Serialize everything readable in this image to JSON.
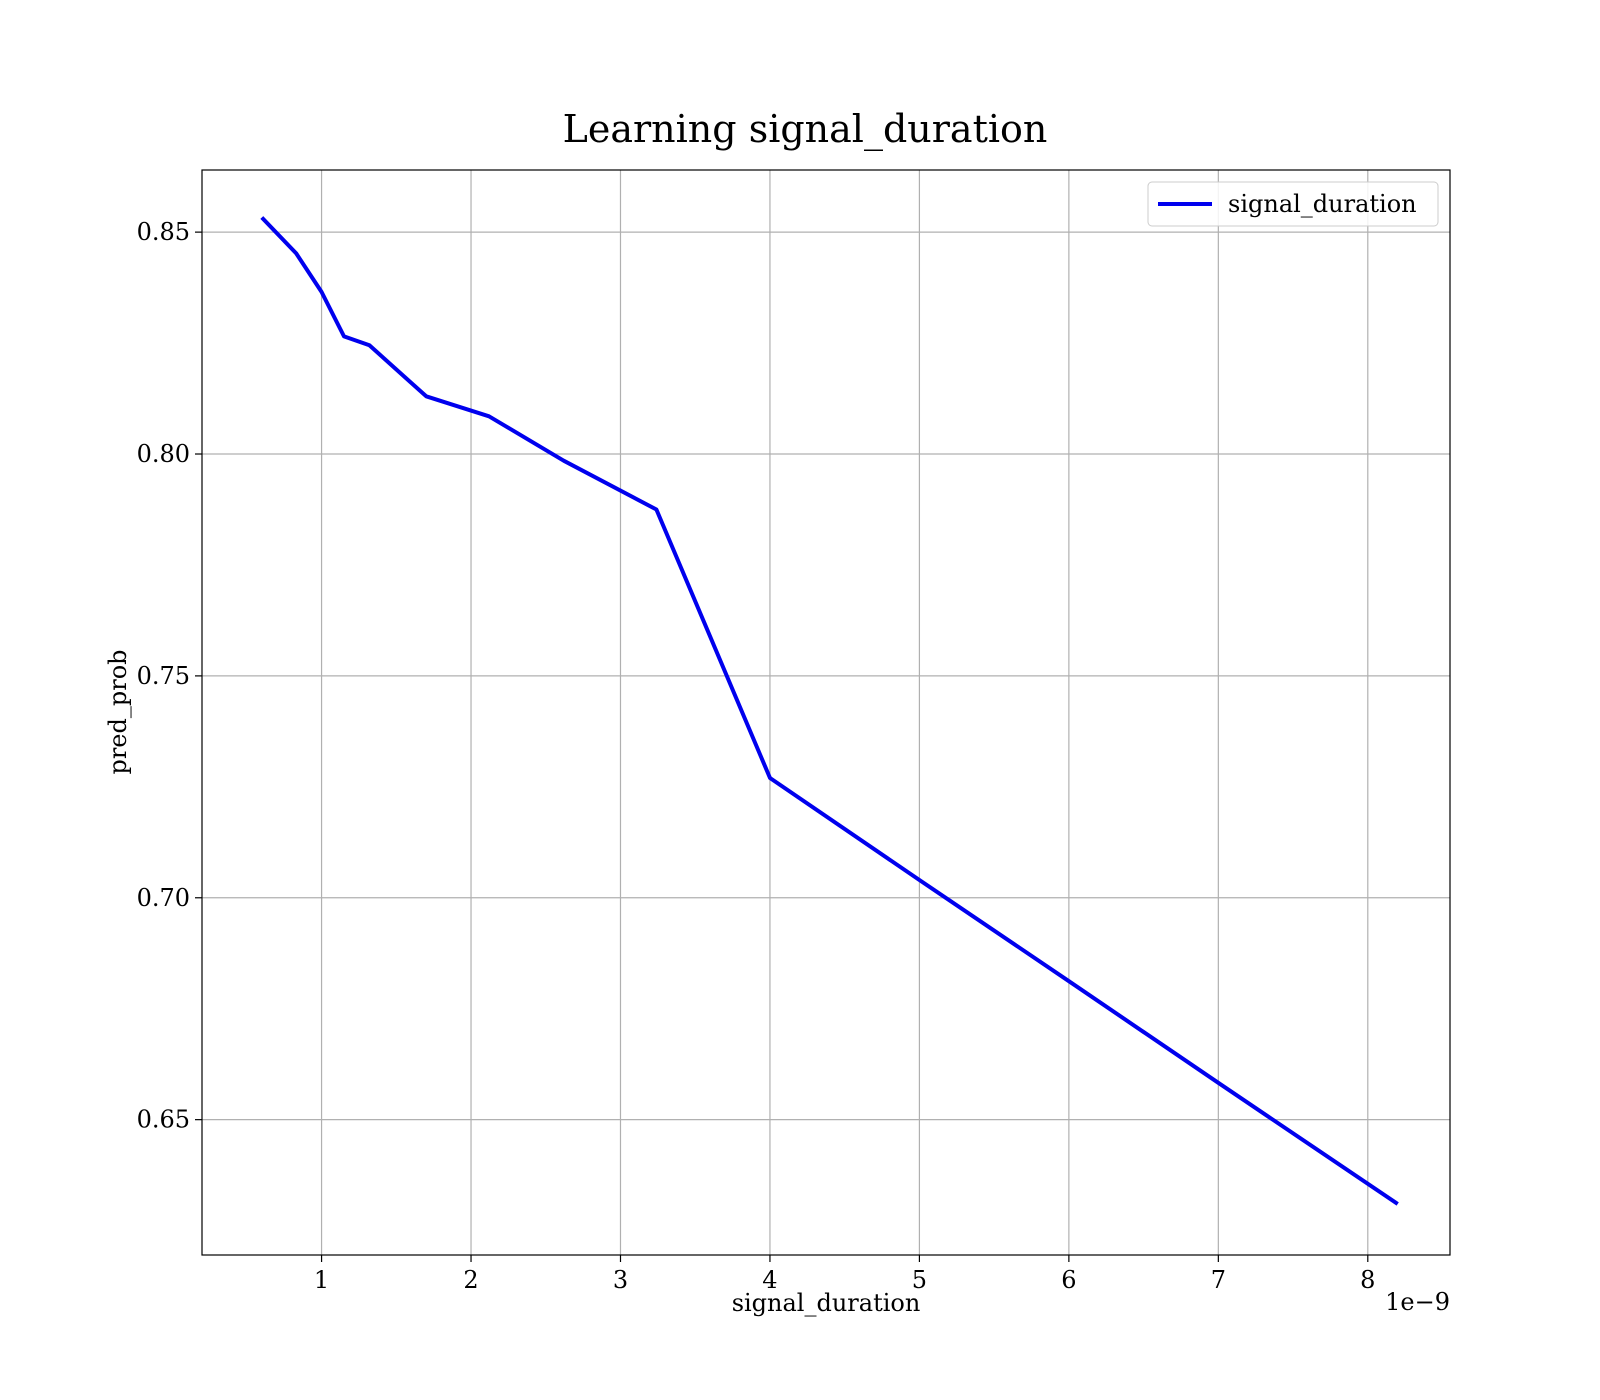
{
  "chart_data": {
    "type": "line",
    "title": "Learning signal_duration",
    "xlabel": "signal_duration",
    "ylabel": "pred_prob",
    "x_offset_text": "1e−9",
    "x_scale": 1e-09,
    "xlim": [
      0.2,
      8.55
    ],
    "ylim": [
      0.6195,
      0.864
    ],
    "xticks": [
      1,
      2,
      3,
      4,
      5,
      6,
      7,
      8
    ],
    "xtick_labels": [
      "1",
      "2",
      "3",
      "4",
      "5",
      "6",
      "7",
      "8"
    ],
    "yticks": [
      0.65,
      0.7,
      0.75,
      0.8,
      0.85
    ],
    "ytick_labels": [
      "0.65",
      "0.70",
      "0.75",
      "0.80",
      "0.85"
    ],
    "grid": true,
    "legend_position": "top-right",
    "series": [
      {
        "name": "signal_duration",
        "color": "#0000ee",
        "x": [
          0.6,
          0.83,
          1.0,
          1.15,
          1.32,
          1.7,
          2.12,
          2.62,
          3.24,
          4.0,
          5.0,
          6.0,
          7.0,
          8.2
        ],
        "y": [
          0.8533,
          0.8452,
          0.8365,
          0.8265,
          0.8245,
          0.813,
          0.8085,
          0.7985,
          0.7875,
          0.727,
          0.704,
          0.6812,
          0.6583,
          0.631
        ]
      }
    ]
  }
}
